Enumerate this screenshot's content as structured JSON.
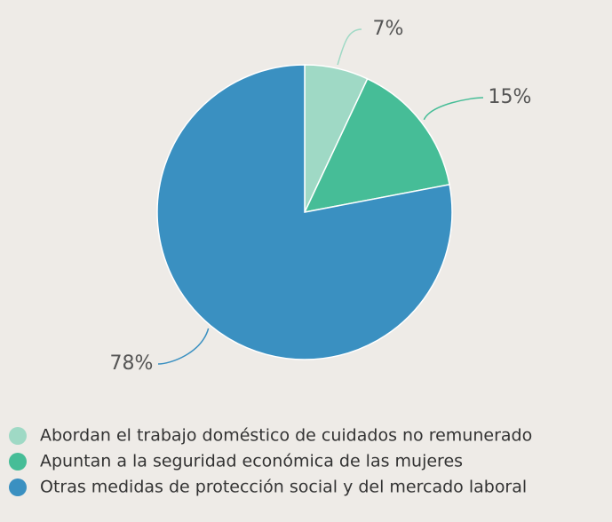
{
  "chart_data": {
    "type": "pie",
    "categories": [
      "Abordan el trabajo doméstico de cuidados no remunerado",
      "Apuntan a la seguridad económica de las mujeres",
      "Otras medidas de protección social y del mercado laboral"
    ],
    "values": [
      7,
      15,
      78
    ],
    "value_labels": [
      "7%",
      "15%",
      "78%"
    ],
    "colors": [
      "#9fd9c5",
      "#46bd97",
      "#3a90c1"
    ],
    "legend": "bottom"
  }
}
